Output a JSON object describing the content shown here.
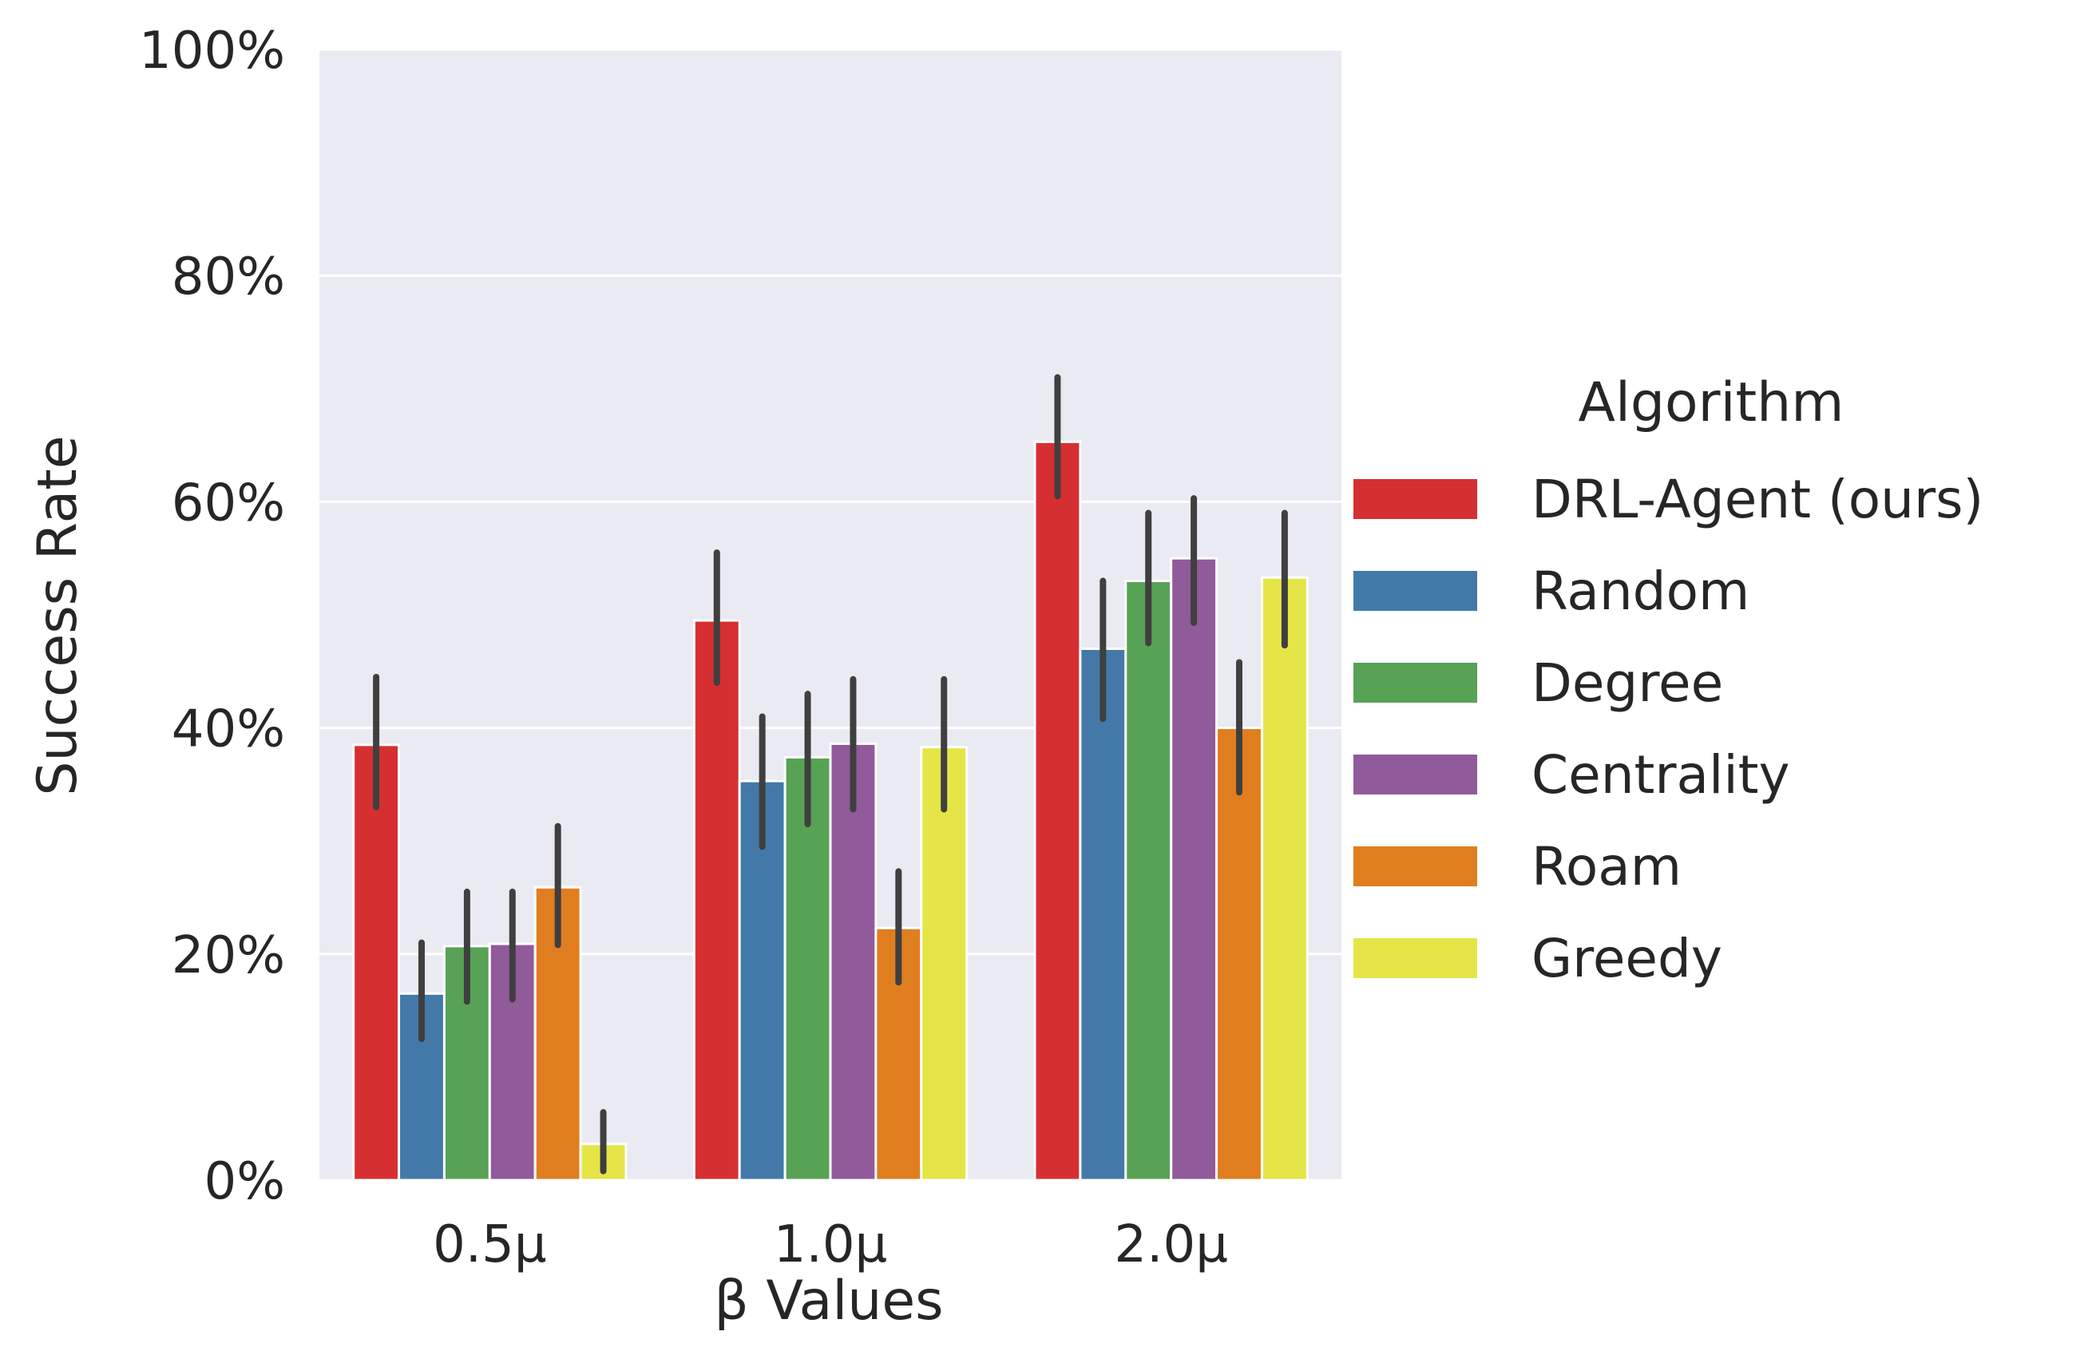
{
  "chart_data": {
    "type": "bar",
    "xlabel": "β Values",
    "ylabel": "Success Rate",
    "categories": [
      "0.5μ",
      "1.0μ",
      "2.0μ"
    ],
    "ylim": [
      0,
      100
    ],
    "yticks": [
      "0%",
      "20%",
      "40%",
      "60%",
      "80%",
      "100%"
    ],
    "ytick_values": [
      0,
      20,
      40,
      60,
      80,
      100
    ],
    "grid": "horizontal",
    "background": "#eaeaf2",
    "legend": {
      "title": "Algorithm",
      "placement": "right"
    },
    "series": [
      {
        "name": "DRL-Agent (ours)",
        "color": "#d62f31",
        "values": [
          38.5,
          49.5,
          65.3
        ],
        "ci": [
          [
            33.0,
            44.5
          ],
          [
            44.0,
            55.5
          ],
          [
            60.5,
            71.0
          ]
        ]
      },
      {
        "name": "Random",
        "color": "#4379a9",
        "values": [
          16.5,
          35.3,
          47.0
        ],
        "ci": [
          [
            12.5,
            21.0
          ],
          [
            29.5,
            41.0
          ],
          [
            40.8,
            53.0
          ]
        ]
      },
      {
        "name": "Degree",
        "color": "#57a255",
        "values": [
          20.7,
          37.4,
          53.0
        ],
        "ci": [
          [
            15.8,
            25.5
          ],
          [
            31.5,
            43.0
          ],
          [
            47.5,
            59.0
          ]
        ]
      },
      {
        "name": "Centrality",
        "color": "#915a9b",
        "values": [
          20.9,
          38.6,
          55.0
        ],
        "ci": [
          [
            16.0,
            25.5
          ],
          [
            32.8,
            44.3
          ],
          [
            49.3,
            60.3
          ]
        ]
      },
      {
        "name": "Roam",
        "color": "#e07e1f",
        "values": [
          25.9,
          22.3,
          40.0
        ],
        "ci": [
          [
            20.8,
            31.3
          ],
          [
            17.5,
            27.3
          ],
          [
            34.3,
            45.8
          ]
        ]
      },
      {
        "name": "Greedy",
        "color": "#e5e548",
        "values": [
          3.2,
          38.3,
          53.3
        ],
        "ci": [
          [
            0.8,
            6.0
          ],
          [
            32.8,
            44.3
          ],
          [
            47.3,
            59.0
          ]
        ]
      }
    ]
  }
}
